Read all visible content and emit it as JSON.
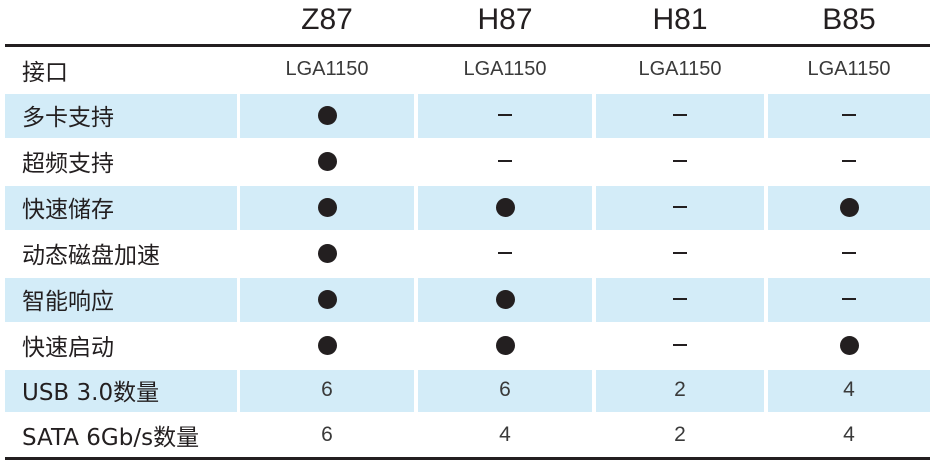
{
  "chart_data": {
    "type": "table",
    "columns": [
      "Z87",
      "H87",
      "H81",
      "B85"
    ],
    "rows": [
      {
        "label": "接口",
        "values": [
          "LGA1150",
          "LGA1150",
          "LGA1150",
          "LGA1150"
        ]
      },
      {
        "label": "多卡支持",
        "values": [
          "●",
          "–",
          "–",
          "–"
        ]
      },
      {
        "label": "超频支持",
        "values": [
          "●",
          "–",
          "–",
          "–"
        ]
      },
      {
        "label": "快速储存",
        "values": [
          "●",
          "●",
          "–",
          "●"
        ]
      },
      {
        "label": "动态磁盘加速",
        "values": [
          "●",
          "–",
          "–",
          "–"
        ]
      },
      {
        "label": "智能响应",
        "values": [
          "●",
          "●",
          "–",
          "–"
        ]
      },
      {
        "label": "快速启动",
        "values": [
          "●",
          "●",
          "–",
          "●"
        ]
      },
      {
        "label": "USB 3.0数量",
        "values": [
          "6",
          "6",
          "2",
          "4"
        ]
      },
      {
        "label": "SATA 6Gb/s数量",
        "values": [
          "6",
          "4",
          "2",
          "4"
        ]
      }
    ]
  },
  "colors": {
    "band": "#d3ecf8",
    "ink": "#231f20"
  }
}
